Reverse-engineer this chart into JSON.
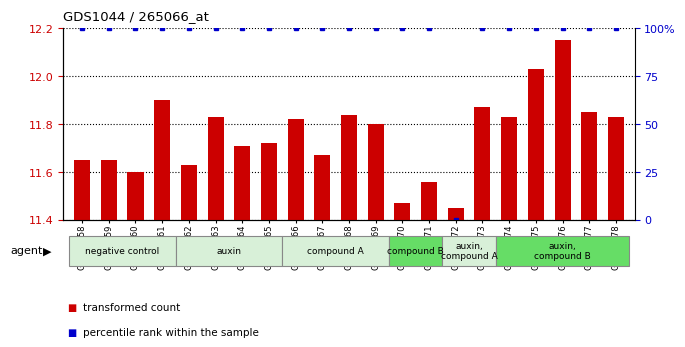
{
  "title": "GDS1044 / 265066_at",
  "samples": [
    "GSM25858",
    "GSM25859",
    "GSM25860",
    "GSM25861",
    "GSM25862",
    "GSM25863",
    "GSM25864",
    "GSM25865",
    "GSM25866",
    "GSM25867",
    "GSM25868",
    "GSM25869",
    "GSM25870",
    "GSM25871",
    "GSM25872",
    "GSM25873",
    "GSM25874",
    "GSM25875",
    "GSM25876",
    "GSM25877",
    "GSM25878"
  ],
  "bar_values": [
    11.65,
    11.65,
    11.6,
    11.9,
    11.63,
    11.83,
    11.71,
    11.72,
    11.82,
    11.67,
    11.84,
    11.8,
    11.47,
    11.56,
    11.45,
    11.87,
    11.83,
    12.03,
    12.15,
    11.85,
    11.83
  ],
  "percentile_values": [
    100,
    100,
    100,
    100,
    100,
    100,
    100,
    100,
    100,
    100,
    100,
    100,
    100,
    100,
    0,
    100,
    100,
    100,
    100,
    100,
    100
  ],
  "bar_color": "#cc0000",
  "percentile_color": "#0000cc",
  "ylim_left": [
    11.4,
    12.2
  ],
  "ylim_right": [
    0,
    100
  ],
  "yticks_left": [
    11.4,
    11.6,
    11.8,
    12.0,
    12.2
  ],
  "yticks_right": [
    0,
    25,
    50,
    75,
    100
  ],
  "ytick_labels_right": [
    "0",
    "25",
    "50",
    "75",
    "100%"
  ],
  "groups": [
    {
      "label": "negative control",
      "start": 0,
      "end": 3,
      "color": "#d8f0d8"
    },
    {
      "label": "auxin",
      "start": 4,
      "end": 7,
      "color": "#d8f0d8"
    },
    {
      "label": "compound A",
      "start": 8,
      "end": 11,
      "color": "#d8f0d8"
    },
    {
      "label": "compound B",
      "start": 12,
      "end": 13,
      "color": "#66dd66"
    },
    {
      "label": "auxin,\ncompound A",
      "start": 14,
      "end": 15,
      "color": "#d8f0d8"
    },
    {
      "label": "auxin,\ncompound B",
      "start": 16,
      "end": 20,
      "color": "#66dd66"
    }
  ],
  "legend_items": [
    {
      "label": "transformed count",
      "color": "#cc0000"
    },
    {
      "label": "percentile rank within the sample",
      "color": "#0000cc"
    }
  ],
  "agent_label": "agent",
  "background_color": "#ffffff",
  "tick_label_color_left": "#cc0000",
  "tick_label_color_right": "#0000cc"
}
